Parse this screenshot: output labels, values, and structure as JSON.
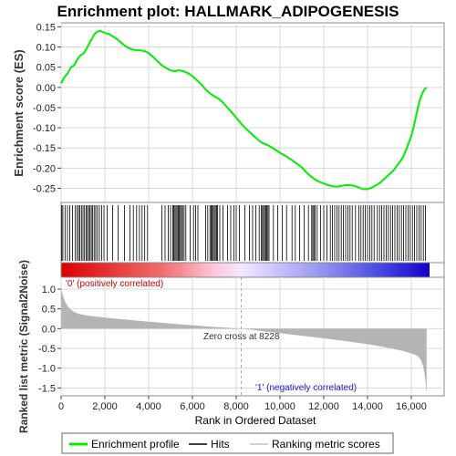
{
  "chart_data": {
    "type": "line",
    "title": "Enrichment plot: HALLMARK_ADIPOGENESIS",
    "ylabel_top": "Enrichment score (ES)",
    "ylabel_bottom": "Ranked list metric (Signal2Noise)",
    "xlabel": "Rank in Ordered Dataset",
    "xlim": [
      0,
      17500
    ],
    "ylim_top": [
      -0.285,
      0.16
    ],
    "ylim_bottom": [
      -1.7,
      1.3
    ],
    "xticks": [
      0,
      2000,
      4000,
      6000,
      8000,
      10000,
      12000,
      14000,
      16000
    ],
    "xtick_labels": [
      "0",
      "2,000",
      "4,000",
      "6,000",
      "8,000",
      "10,000",
      "12,000",
      "14,000",
      "16,000"
    ],
    "yticks_top": [
      0.15,
      0.1,
      0.05,
      0.0,
      -0.05,
      -0.1,
      -0.15,
      -0.2,
      -0.25
    ],
    "ytick_labels_top": [
      "0.15",
      "0.10",
      "0.05",
      "0.00",
      "-0.05",
      "-0.10",
      "-0.15",
      "-0.20",
      "-0.25"
    ],
    "yticks_bottom": [
      1.0,
      0.5,
      0.0,
      -0.5,
      -1.0,
      -1.5
    ],
    "ytick_labels_bottom": [
      "1.0",
      "0.5",
      "0.0",
      "-0.5",
      "-1.0",
      "-1.5"
    ],
    "grid": true,
    "zero_cross_rank": 8228,
    "zero_cross_label": "Zero cross at 8228",
    "positive_label": "'0' (positively correlated)",
    "negative_label": "'1' (negatively correlated)",
    "dataset_size": 16700,
    "enrichment_profile": {
      "x": [
        0,
        150,
        300,
        450,
        600,
        750,
        900,
        1050,
        1200,
        1350,
        1500,
        1650,
        1800,
        2000,
        2200,
        2400,
        2600,
        2800,
        3000,
        3200,
        3400,
        3600,
        3800,
        4000,
        4200,
        4400,
        4600,
        4800,
        5000,
        5200,
        5400,
        5600,
        5800,
        6000,
        6200,
        6400,
        6600,
        6800,
        7000,
        7200,
        7400,
        7600,
        7800,
        8000,
        8200,
        8400,
        8600,
        8800,
        9000,
        9200,
        9400,
        9600,
        9800,
        10000,
        10200,
        10400,
        10600,
        10800,
        11000,
        11200,
        11400,
        11600,
        11800,
        12000,
        12200,
        12400,
        12600,
        12800,
        13000,
        13200,
        13400,
        13600,
        13800,
        14000,
        14200,
        14400,
        14600,
        14800,
        15000,
        15200,
        15400,
        15600,
        15800,
        16000,
        16100,
        16200,
        16300,
        16400,
        16500,
        16600,
        16700
      ],
      "y": [
        0.01,
        0.025,
        0.035,
        0.05,
        0.055,
        0.07,
        0.08,
        0.085,
        0.1,
        0.115,
        0.13,
        0.138,
        0.14,
        0.135,
        0.132,
        0.125,
        0.118,
        0.108,
        0.1,
        0.095,
        0.092,
        0.092,
        0.09,
        0.085,
        0.076,
        0.065,
        0.055,
        0.048,
        0.042,
        0.04,
        0.042,
        0.04,
        0.035,
        0.028,
        0.018,
        0.008,
        -0.005,
        -0.015,
        -0.022,
        -0.028,
        -0.038,
        -0.05,
        -0.062,
        -0.075,
        -0.088,
        -0.1,
        -0.11,
        -0.12,
        -0.13,
        -0.138,
        -0.142,
        -0.148,
        -0.155,
        -0.162,
        -0.168,
        -0.175,
        -0.182,
        -0.19,
        -0.198,
        -0.21,
        -0.22,
        -0.228,
        -0.234,
        -0.238,
        -0.242,
        -0.245,
        -0.246,
        -0.244,
        -0.242,
        -0.242,
        -0.244,
        -0.248,
        -0.252,
        -0.252,
        -0.248,
        -0.242,
        -0.235,
        -0.225,
        -0.215,
        -0.205,
        -0.19,
        -0.175,
        -0.15,
        -0.12,
        -0.1,
        -0.075,
        -0.05,
        -0.03,
        -0.015,
        -0.005,
        0.0
      ]
    },
    "hit_ranks": [
      30,
      80,
      180,
      290,
      400,
      520,
      640,
      730,
      800,
      860,
      930,
      1000,
      1070,
      1140,
      1200,
      1260,
      1320,
      1380,
      1440,
      1510,
      1580,
      1660,
      1750,
      1850,
      1960,
      2100,
      2350,
      2600,
      2900,
      3150,
      3300,
      3450,
      3580,
      3700,
      3820,
      3950,
      4600,
      4750,
      4900,
      5000,
      5100,
      5150,
      5200,
      5250,
      5300,
      5350,
      5400,
      5450,
      5500,
      5550,
      5620,
      5700,
      5900,
      6050,
      6150,
      6250,
      6600,
      6700,
      6800,
      6850,
      6900,
      6950,
      7000,
      7050,
      7100,
      7150,
      7250,
      7400,
      7600,
      7750,
      7900,
      8000,
      8150,
      8400,
      8600,
      8750,
      8900,
      9050,
      9150,
      9200,
      9250,
      9300,
      9350,
      9400,
      9450,
      9500,
      9700,
      9900,
      10100,
      10300,
      10550,
      10700,
      10900,
      11100,
      11300,
      11450,
      11500,
      11550,
      11600,
      11700,
      11850,
      12000,
      12150,
      12300,
      12400,
      12500,
      12600,
      12700,
      12800,
      12900,
      13000,
      13100,
      13200,
      13300,
      13450,
      13600,
      13700,
      13800,
      13900,
      14000,
      14100,
      14200,
      14300,
      14450,
      14550,
      14650,
      14750,
      14850,
      14950,
      15050,
      15150,
      15250,
      15350,
      15450,
      15550,
      15650,
      15750,
      15850,
      15950,
      16050,
      16150,
      16250,
      16350,
      16450,
      16550,
      16650
    ]
  },
  "legend": {
    "items": [
      {
        "label": "Enrichment profile",
        "color": "#00ee00"
      },
      {
        "label": "Hits",
        "color": "#000000"
      },
      {
        "label": "Ranking metric scores",
        "color": "#c0c0c0"
      }
    ]
  },
  "colors": {
    "profile": "#00ee00",
    "positive_text": "#cc0000",
    "negative_text": "#1a1acc",
    "metric_fill": "#b4b4b4",
    "grid": "#d8d8d8"
  }
}
